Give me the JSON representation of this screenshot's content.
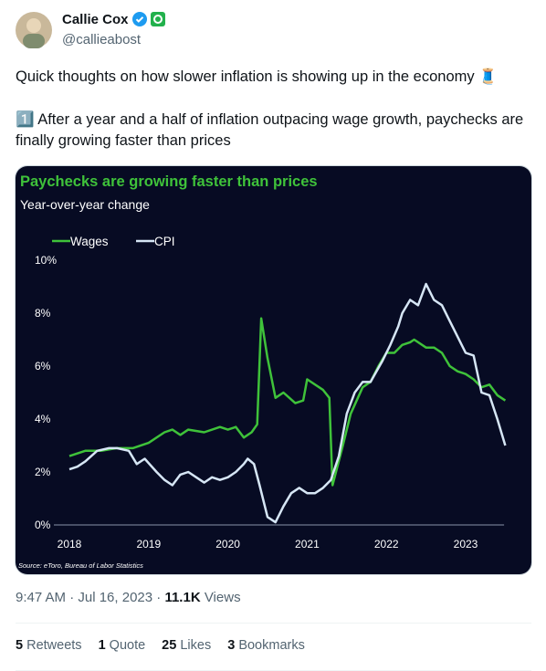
{
  "author": {
    "name": "Callie Cox",
    "handle": "@callieabost"
  },
  "text": [
    "Quick thoughts on how slower inflation is showing up in the economy 🧵",
    "1️⃣ After a year and a half of inflation outpacing wage growth, paychecks are finally growing faster than prices"
  ],
  "chart_data": {
    "type": "line",
    "title": "Paychecks are growing faster than prices",
    "subtitle": "Year-over-year change",
    "source": "Source: eToro, Bureau of Labor Statistics",
    "xlim": [
      2018,
      2023.6
    ],
    "xticks": [
      2018,
      2019,
      2020,
      2021,
      2022,
      2023
    ],
    "ylim": [
      0,
      10
    ],
    "yticks": [
      {
        "value": 0,
        "label": "0%"
      },
      {
        "value": 2,
        "label": "2%"
      },
      {
        "value": 4,
        "label": "4%"
      },
      {
        "value": 6,
        "label": "6%"
      },
      {
        "value": 8,
        "label": "8%"
      },
      {
        "value": 10,
        "label": "10%"
      }
    ],
    "legend": "top-left",
    "series": [
      {
        "name": "Wages",
        "color": "#3fc23a",
        "x": [
          2018.0,
          2018.2,
          2018.4,
          2018.6,
          2018.8,
          2019.0,
          2019.2,
          2019.3,
          2019.4,
          2019.5,
          2019.7,
          2019.9,
          2020.0,
          2020.1,
          2020.2,
          2020.3,
          2020.37,
          2020.42,
          2020.5,
          2020.6,
          2020.7,
          2020.85,
          2020.95,
          2021.0,
          2021.2,
          2021.28,
          2021.32,
          2021.45,
          2021.55,
          2021.7,
          2021.8,
          2021.9,
          2022.0,
          2022.1,
          2022.2,
          2022.3,
          2022.35,
          2022.5,
          2022.6,
          2022.7,
          2022.8,
          2022.9,
          2023.0,
          2023.1,
          2023.2,
          2023.3,
          2023.4,
          2023.5
        ],
        "values": [
          2.6,
          2.8,
          2.8,
          2.9,
          2.9,
          3.1,
          3.5,
          3.6,
          3.4,
          3.6,
          3.5,
          3.7,
          3.6,
          3.7,
          3.3,
          3.5,
          3.8,
          7.8,
          6.3,
          4.8,
          5.0,
          4.6,
          4.7,
          5.5,
          5.1,
          4.8,
          1.5,
          3.0,
          4.2,
          5.2,
          5.4,
          6.0,
          6.5,
          6.5,
          6.8,
          6.9,
          7.0,
          6.7,
          6.7,
          6.5,
          6.0,
          5.8,
          5.7,
          5.5,
          5.2,
          5.3,
          4.9,
          4.7
        ]
      },
      {
        "name": "CPI",
        "color": "#d6e6f5",
        "x": [
          2018.0,
          2018.1,
          2018.2,
          2018.35,
          2018.5,
          2018.6,
          2018.75,
          2018.85,
          2018.95,
          2019.1,
          2019.2,
          2019.3,
          2019.4,
          2019.5,
          2019.6,
          2019.7,
          2019.8,
          2019.9,
          2020.0,
          2020.1,
          2020.2,
          2020.25,
          2020.33,
          2020.4,
          2020.5,
          2020.6,
          2020.7,
          2020.8,
          2020.9,
          2021.0,
          2021.1,
          2021.2,
          2021.3,
          2021.4,
          2021.5,
          2021.6,
          2021.7,
          2021.8,
          2021.95,
          2022.05,
          2022.15,
          2022.2,
          2022.3,
          2022.4,
          2022.5,
          2022.6,
          2022.7,
          2022.8,
          2022.9,
          2023.0,
          2023.1,
          2023.2,
          2023.3,
          2023.4,
          2023.5
        ],
        "values": [
          2.1,
          2.2,
          2.4,
          2.8,
          2.9,
          2.9,
          2.8,
          2.3,
          2.5,
          2.0,
          1.7,
          1.5,
          1.9,
          2.0,
          1.8,
          1.6,
          1.8,
          1.7,
          1.8,
          2.0,
          2.3,
          2.5,
          2.3,
          1.5,
          0.3,
          0.1,
          0.7,
          1.2,
          1.4,
          1.2,
          1.2,
          1.4,
          1.7,
          2.6,
          4.2,
          5.0,
          5.4,
          5.4,
          6.2,
          6.8,
          7.5,
          8.0,
          8.5,
          8.3,
          9.1,
          8.5,
          8.3,
          7.7,
          7.1,
          6.5,
          6.4,
          5.0,
          4.9,
          4.0,
          3.0
        ]
      }
    ]
  },
  "timestamp": "9:47 AM · Jul 16, 2023",
  "separator": "·",
  "views": {
    "count": "11.1K",
    "label": "Views"
  },
  "stats": [
    {
      "count": "5",
      "label": "Retweets"
    },
    {
      "count": "1",
      "label": "Quote"
    },
    {
      "count": "25",
      "label": "Likes"
    },
    {
      "count": "3",
      "label": "Bookmarks"
    }
  ]
}
